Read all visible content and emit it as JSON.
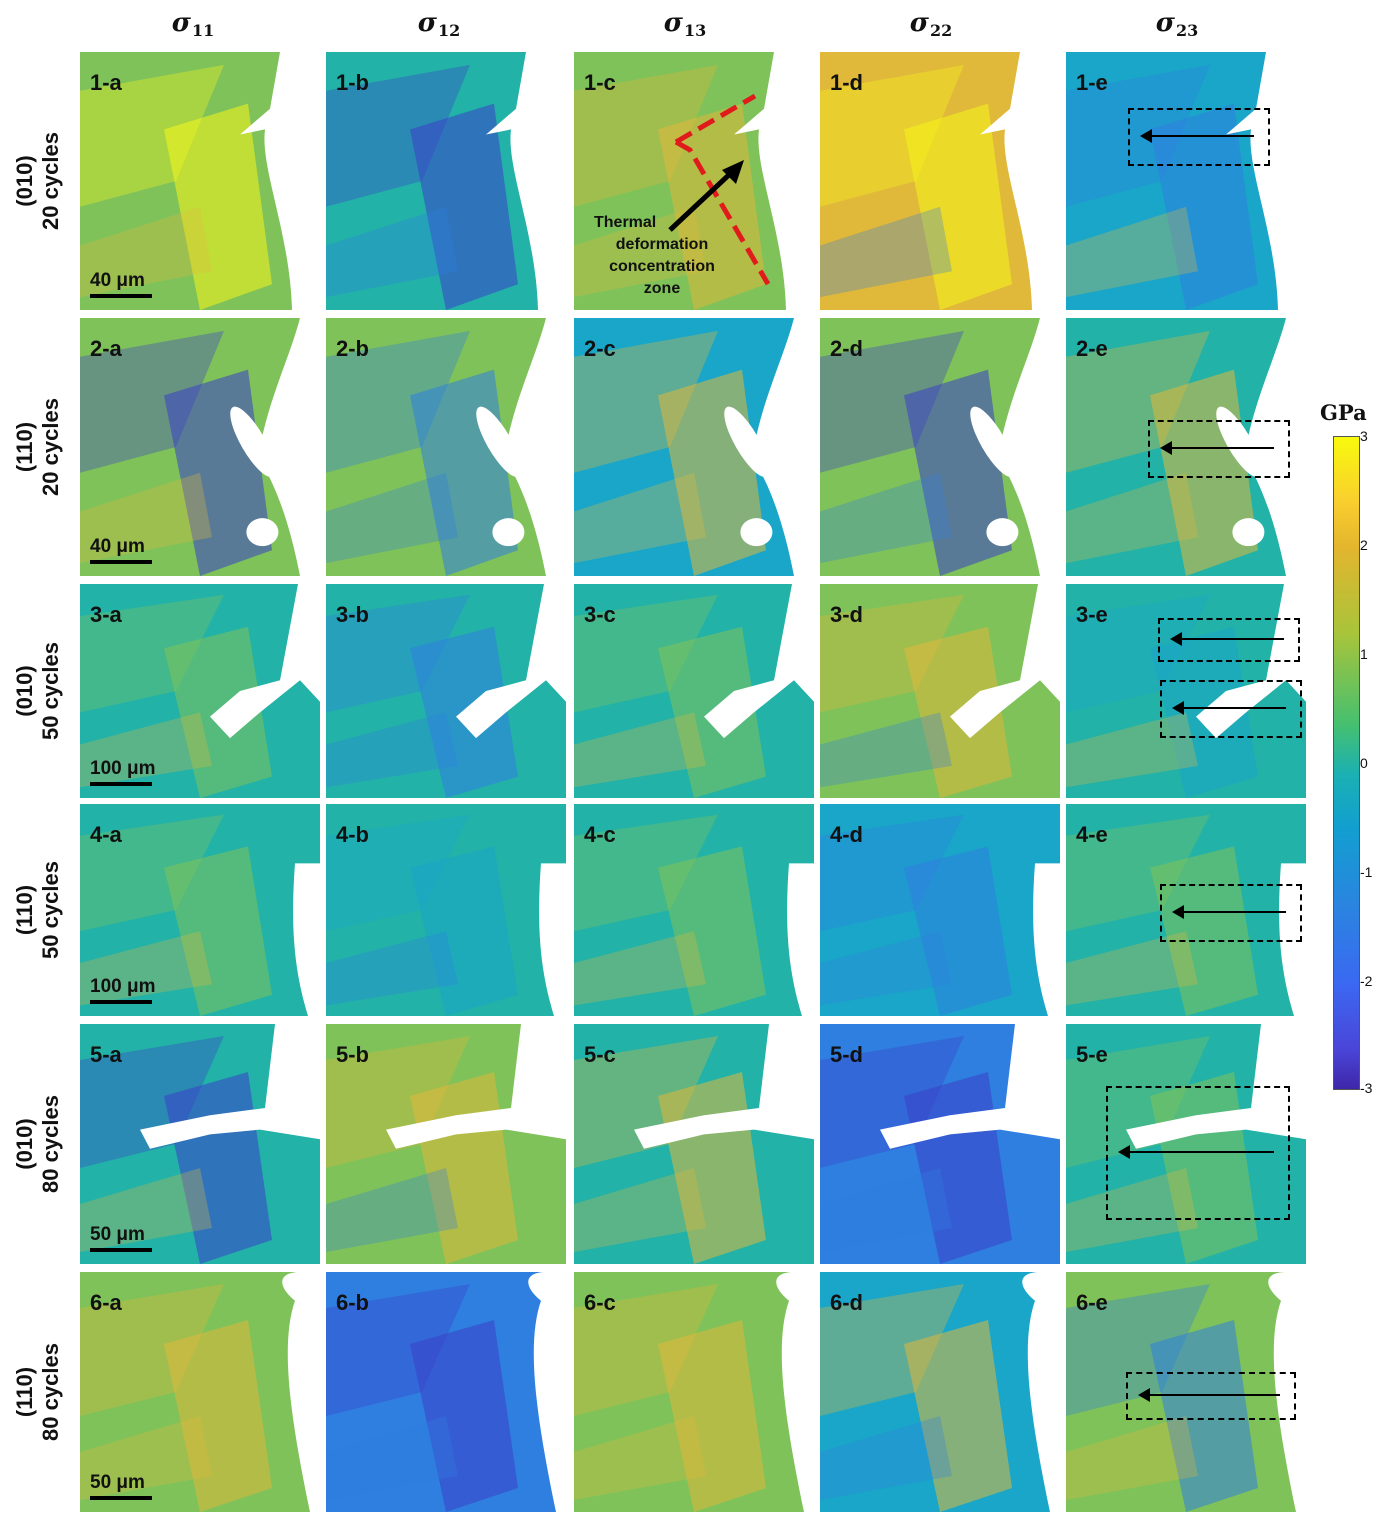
{
  "columns": [
    {
      "sym": "σ",
      "sub": "11"
    },
    {
      "sym": "σ",
      "sub": "12"
    },
    {
      "sym": "σ",
      "sub": "13"
    },
    {
      "sym": "σ",
      "sub": "22"
    },
    {
      "sym": "σ",
      "sub": "23"
    }
  ],
  "rows": [
    {
      "plane": "(010)",
      "cycles": "20 cycles",
      "scale": "40 μm"
    },
    {
      "plane": "(110)",
      "cycles": "20 cycles",
      "scale": "40 μm"
    },
    {
      "plane": "(010)",
      "cycles": "50 cycles",
      "scale": "100 μm"
    },
    {
      "plane": "(110)",
      "cycles": "50 cycles",
      "scale": "100 μm"
    },
    {
      "plane": "(010)",
      "cycles": "80 cycles",
      "scale": "50 μm"
    },
    {
      "plane": "(110)",
      "cycles": "80 cycles",
      "scale": "50 μm"
    }
  ],
  "panel_labels": [
    [
      "1-a",
      "1-b",
      "1-c",
      "1-d",
      "1-e"
    ],
    [
      "2-a",
      "2-b",
      "2-c",
      "2-d",
      "2-e"
    ],
    [
      "3-a",
      "3-b",
      "3-c",
      "3-d",
      "3-e"
    ],
    [
      "4-a",
      "4-b",
      "4-c",
      "4-d",
      "4-e"
    ],
    [
      "5-a",
      "5-b",
      "5-c",
      "5-d",
      "5-e"
    ],
    [
      "6-a",
      "6-b",
      "6-c",
      "6-d",
      "6-e"
    ]
  ],
  "annotation": {
    "text": [
      "Thermal",
      "deformation",
      "concentration",
      "zone"
    ]
  },
  "colorbar": {
    "unit": "GPa",
    "ticks": [
      "3",
      "2",
      "1",
      "0",
      "-1",
      "-2",
      "-3"
    ],
    "range": [
      -3,
      3
    ]
  },
  "colors": {
    "yellow": "#f5f51a",
    "gold": "#e0b83a",
    "green": "#7fc25a",
    "teal": "#22b2a8",
    "cyan": "#1aa6c8",
    "blue": "#2f7fe0",
    "indigo": "#3b3fc8",
    "crack": "#ffffff"
  }
}
